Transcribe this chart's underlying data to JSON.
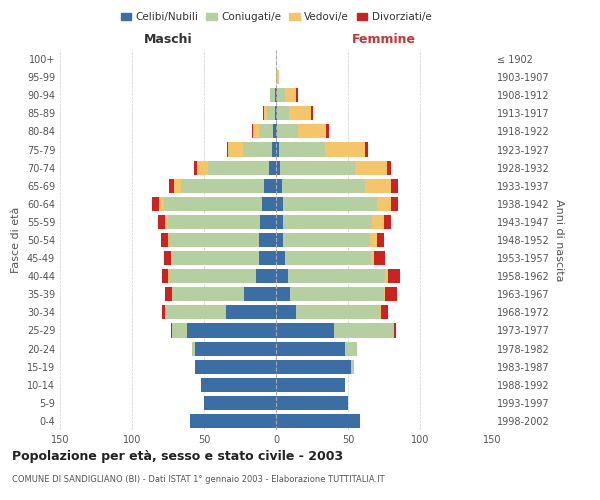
{
  "age_groups": [
    "0-4",
    "5-9",
    "10-14",
    "15-19",
    "20-24",
    "25-29",
    "30-34",
    "35-39",
    "40-44",
    "45-49",
    "50-54",
    "55-59",
    "60-64",
    "65-69",
    "70-74",
    "75-79",
    "80-84",
    "85-89",
    "90-94",
    "95-99",
    "100+"
  ],
  "birth_years": [
    "1998-2002",
    "1993-1997",
    "1988-1992",
    "1983-1987",
    "1978-1982",
    "1973-1977",
    "1968-1972",
    "1963-1967",
    "1958-1962",
    "1953-1957",
    "1948-1952",
    "1943-1947",
    "1938-1942",
    "1933-1937",
    "1928-1932",
    "1923-1927",
    "1918-1922",
    "1913-1917",
    "1908-1912",
    "1903-1907",
    "≤ 1902"
  ],
  "males": {
    "celibi": [
      60,
      50,
      52,
      56,
      56,
      62,
      35,
      22,
      14,
      12,
      12,
      11,
      10,
      8,
      5,
      3,
      2,
      1,
      1,
      0,
      0
    ],
    "coniugati": [
      0,
      0,
      0,
      0,
      2,
      10,
      42,
      50,
      60,
      60,
      62,
      64,
      68,
      58,
      42,
      20,
      10,
      5,
      3,
      0,
      0
    ],
    "vedovi": [
      0,
      0,
      0,
      0,
      0,
      0,
      0,
      0,
      1,
      1,
      1,
      2,
      3,
      5,
      8,
      10,
      4,
      2,
      0,
      0,
      0
    ],
    "divorziati": [
      0,
      0,
      0,
      0,
      0,
      1,
      2,
      5,
      4,
      5,
      5,
      5,
      5,
      3,
      2,
      1,
      1,
      1,
      0,
      0,
      0
    ]
  },
  "females": {
    "nubili": [
      58,
      50,
      48,
      52,
      48,
      40,
      14,
      10,
      8,
      6,
      5,
      5,
      5,
      4,
      3,
      2,
      1,
      1,
      1,
      0,
      0
    ],
    "coniugate": [
      0,
      0,
      0,
      2,
      8,
      42,
      58,
      65,
      68,
      60,
      60,
      62,
      65,
      58,
      52,
      32,
      14,
      8,
      5,
      1,
      0
    ],
    "vedove": [
      0,
      0,
      0,
      0,
      0,
      0,
      1,
      1,
      2,
      2,
      5,
      8,
      10,
      18,
      22,
      28,
      20,
      15,
      8,
      1,
      0
    ],
    "divorziate": [
      0,
      0,
      0,
      0,
      0,
      1,
      5,
      8,
      8,
      8,
      5,
      5,
      5,
      5,
      3,
      2,
      2,
      2,
      1,
      0,
      0
    ]
  },
  "colors": {
    "celibi_nubili": "#3a6ea5",
    "coniugati": "#b5cfa0",
    "vedovi": "#f5c56a",
    "divorziati": "#cc2222"
  },
  "xlim": 150,
  "title": "Popolazione per età, sesso e stato civile - 2003",
  "subtitle": "COMUNE DI SANDIGLIANO (BI) - Dati ISTAT 1° gennaio 2003 - Elaborazione TUTTITALIA.IT",
  "ylabel_left": "Fasce di età",
  "ylabel_right": "Anni di nascita",
  "xlabel_left": "Maschi",
  "xlabel_right": "Femmine",
  "bg_color": "#ffffff",
  "grid_color": "#cccccc"
}
